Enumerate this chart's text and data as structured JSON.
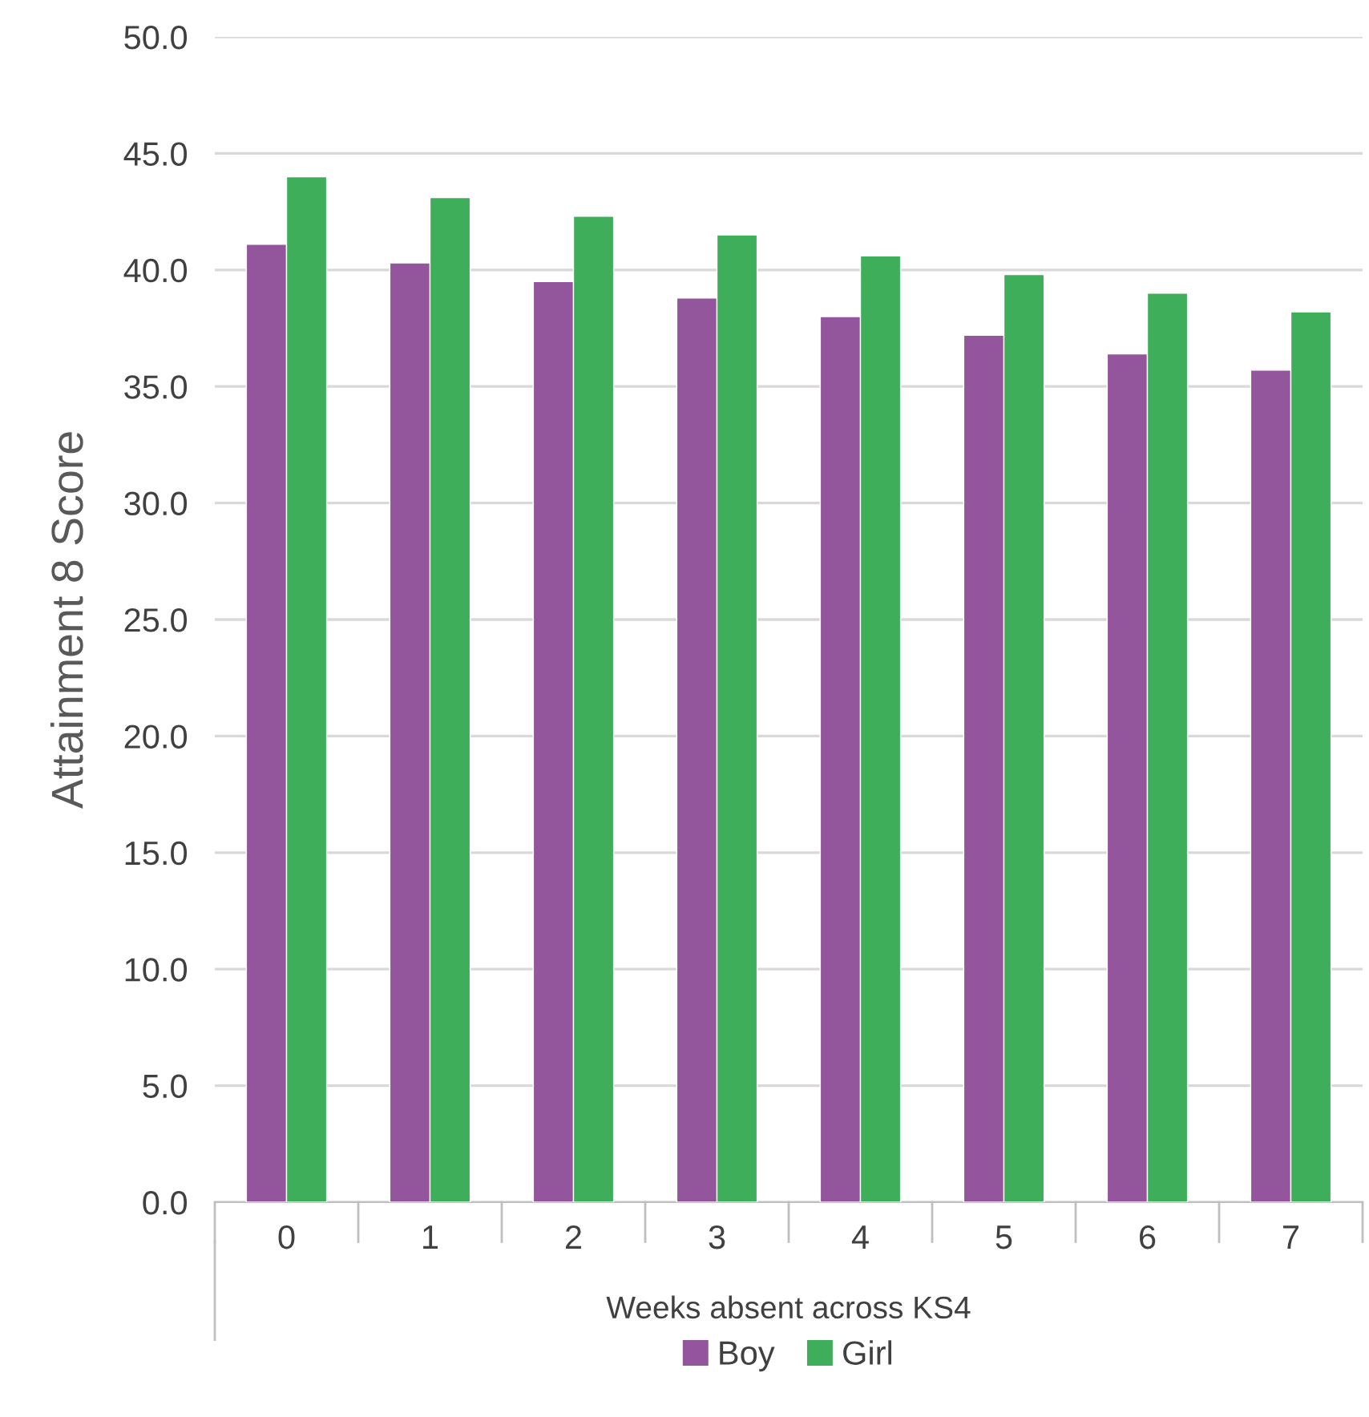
{
  "chart_data": {
    "type": "bar",
    "xlabel": "Weeks absent across KS4",
    "ylabel": "Attainment 8 Score",
    "categories": [
      "0",
      "1",
      "2",
      "3",
      "4",
      "5",
      "6",
      "7"
    ],
    "series": [
      {
        "name": "Boy",
        "color": "#93559c",
        "values": [
          41.1,
          40.3,
          39.5,
          38.8,
          38.0,
          37.2,
          36.4,
          35.7
        ]
      },
      {
        "name": "Girl",
        "color": "#3fae5b",
        "values": [
          44.0,
          43.1,
          42.3,
          41.5,
          40.6,
          39.8,
          39.0,
          38.2
        ]
      }
    ],
    "ylim": [
      0,
      50
    ],
    "yticks": [
      {
        "value": 0,
        "label": "0.0"
      },
      {
        "value": 5,
        "label": "5.0"
      },
      {
        "value": 10,
        "label": "10.0"
      },
      {
        "value": 15,
        "label": "15.0"
      },
      {
        "value": 20,
        "label": "20.0"
      },
      {
        "value": 25,
        "label": "25.0"
      },
      {
        "value": 30,
        "label": "30.0"
      },
      {
        "value": 35,
        "label": "35.0"
      },
      {
        "value": 40,
        "label": "40.0"
      },
      {
        "value": 45,
        "label": "45.0"
      },
      {
        "value": 50,
        "label": "50.0"
      }
    ],
    "grid": "y",
    "legend": "bottom"
  }
}
